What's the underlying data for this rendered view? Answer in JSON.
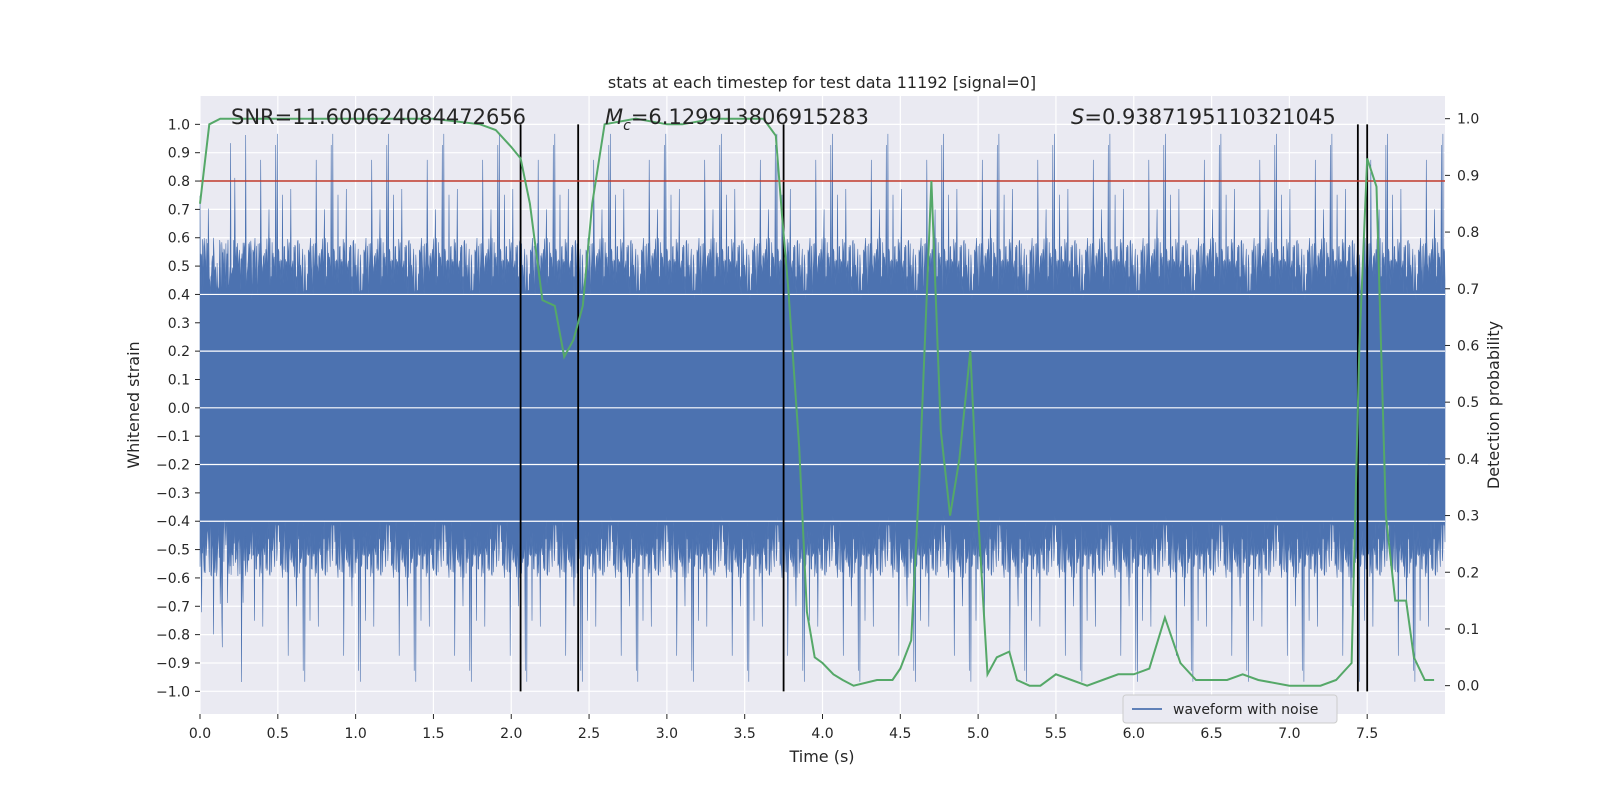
{
  "chart_data": {
    "type": "line",
    "title": "stats at each timestep for test data 11192 [signal=0]",
    "xlabel": "Time (s)",
    "ylabel_left": "Whitened strain",
    "ylabel_right": "Detection probability",
    "xlim": [
      0.0,
      8.0
    ],
    "ylim_left": [
      -1.08,
      1.1
    ],
    "ylim_right": [
      -0.05,
      1.04
    ],
    "x_ticks": [
      "0.0",
      "0.5",
      "1.0",
      "1.5",
      "2.0",
      "2.5",
      "3.0",
      "3.5",
      "4.0",
      "4.5",
      "5.0",
      "5.5",
      "6.0",
      "6.5",
      "7.0",
      "7.5"
    ],
    "x_tick_values": [
      0.0,
      0.5,
      1.0,
      1.5,
      2.0,
      2.5,
      3.0,
      3.5,
      4.0,
      4.5,
      5.0,
      5.5,
      6.0,
      6.5,
      7.0,
      7.5
    ],
    "y_left_ticks": [
      "1.0",
      "0.9",
      "0.8",
      "0.7",
      "0.6",
      "0.5",
      "0.4",
      "0.3",
      "0.2",
      "0.1",
      "0.0",
      "−0.1",
      "−0.2",
      "−0.3",
      "−0.4",
      "−0.5",
      "−0.6",
      "−0.7",
      "−0.8",
      "−0.9",
      "−1.0"
    ],
    "y_left_tick_values": [
      1.0,
      0.9,
      0.8,
      0.7,
      0.6,
      0.5,
      0.4,
      0.3,
      0.2,
      0.1,
      0.0,
      -0.1,
      -0.2,
      -0.3,
      -0.4,
      -0.5,
      -0.6,
      -0.7,
      -0.8,
      -0.9,
      -1.0
    ],
    "y_right_ticks": [
      "1.0",
      "0.9",
      "0.8",
      "0.7",
      "0.6",
      "0.5",
      "0.4",
      "0.3",
      "0.2",
      "0.1",
      "0.0"
    ],
    "y_right_tick_values": [
      1.0,
      0.9,
      0.8,
      0.7,
      0.6,
      0.5,
      0.4,
      0.3,
      0.2,
      0.1,
      0.0
    ],
    "annotations": {
      "snr": "SNR=11.600624084472656",
      "mc_symbol": "M",
      "mc_subscript": "c",
      "mc_value": "=6.129913806915283",
      "s_symbol": "S",
      "s_value": "=0.9387195110321045"
    },
    "threshold": {
      "value": 0.8,
      "axis": "left",
      "color": "#c0392b"
    },
    "vertical_lines": [
      2.06,
      2.43,
      3.75,
      7.44,
      7.5
    ],
    "legend": {
      "label": "waveform with noise",
      "location": "lower-right"
    },
    "series": [
      {
        "name": "waveform with noise",
        "axis": "left",
        "color": "#4c72b0",
        "style": "dense-noise",
        "duration": 8.0,
        "core_amplitude": 0.38,
        "typical_peak": 0.6,
        "max_abs": 0.98
      },
      {
        "name": "detection probability",
        "axis": "right",
        "color": "#55a868",
        "x": [
          0.0,
          0.06,
          0.13,
          0.19,
          0.25,
          0.5,
          1.0,
          1.5,
          1.8,
          1.9,
          2.0,
          2.06,
          2.12,
          2.2,
          2.28,
          2.34,
          2.4,
          2.46,
          2.52,
          2.6,
          2.8,
          3.0,
          3.1,
          3.3,
          3.5,
          3.62,
          3.7,
          3.74,
          3.78,
          3.85,
          3.9,
          3.95,
          4.0,
          4.07,
          4.13,
          4.2,
          4.35,
          4.45,
          4.5,
          4.57,
          4.62,
          4.7,
          4.76,
          4.82,
          4.88,
          4.95,
          5.0,
          5.06,
          5.12,
          5.2,
          5.25,
          5.33,
          5.4,
          5.5,
          5.6,
          5.7,
          5.8,
          5.9,
          6.0,
          6.1,
          6.2,
          6.3,
          6.4,
          6.5,
          6.6,
          6.7,
          6.8,
          7.0,
          7.2,
          7.3,
          7.4,
          7.45,
          7.5,
          7.56,
          7.62,
          7.68,
          7.75,
          7.8,
          7.87,
          7.93
        ],
        "values": [
          0.85,
          0.99,
          1.0,
          1.0,
          1.0,
          1.0,
          1.0,
          1.0,
          0.99,
          0.98,
          0.95,
          0.93,
          0.85,
          0.68,
          0.67,
          0.58,
          0.61,
          0.67,
          0.85,
          0.99,
          1.0,
          0.99,
          0.99,
          1.0,
          1.0,
          1.0,
          0.97,
          0.83,
          0.7,
          0.42,
          0.13,
          0.05,
          0.04,
          0.02,
          0.01,
          0.0,
          0.01,
          0.01,
          0.03,
          0.08,
          0.35,
          0.89,
          0.45,
          0.3,
          0.4,
          0.59,
          0.3,
          0.02,
          0.05,
          0.06,
          0.01,
          0.0,
          0.0,
          0.02,
          0.01,
          0.0,
          0.01,
          0.02,
          0.02,
          0.03,
          0.12,
          0.04,
          0.01,
          0.01,
          0.01,
          0.02,
          0.01,
          0.0,
          0.0,
          0.01,
          0.04,
          0.6,
          0.93,
          0.88,
          0.3,
          0.15,
          0.15,
          0.05,
          0.01,
          0.01
        ]
      }
    ]
  }
}
